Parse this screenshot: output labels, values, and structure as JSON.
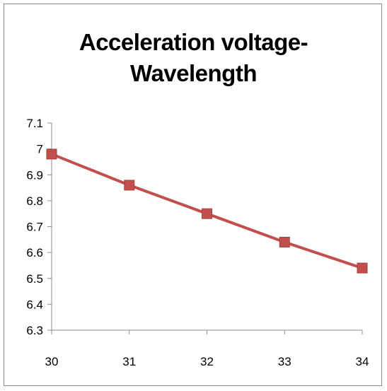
{
  "chart_data": {
    "type": "line",
    "title_lines": [
      "Acceleration voltage-",
      "Wavelength"
    ],
    "xlabel": "",
    "ylabel": "",
    "x": [
      30,
      31,
      32,
      33,
      34
    ],
    "series": [
      {
        "values": [
          6.98,
          6.86,
          6.75,
          6.64,
          6.54
        ],
        "color": "#c0504d",
        "marker": "square"
      }
    ],
    "x_ticks": [
      "30",
      "31",
      "32",
      "33",
      "34"
    ],
    "y_ticks": [
      "6.3",
      "6.4",
      "6.5",
      "6.6",
      "6.7",
      "6.8",
      "6.9",
      "7",
      "7.1"
    ],
    "ylim": [
      6.3,
      7.1
    ],
    "xlim": [
      30,
      34
    ],
    "grid": false,
    "legend": "none",
    "axis_color": "#8c8c8c"
  }
}
